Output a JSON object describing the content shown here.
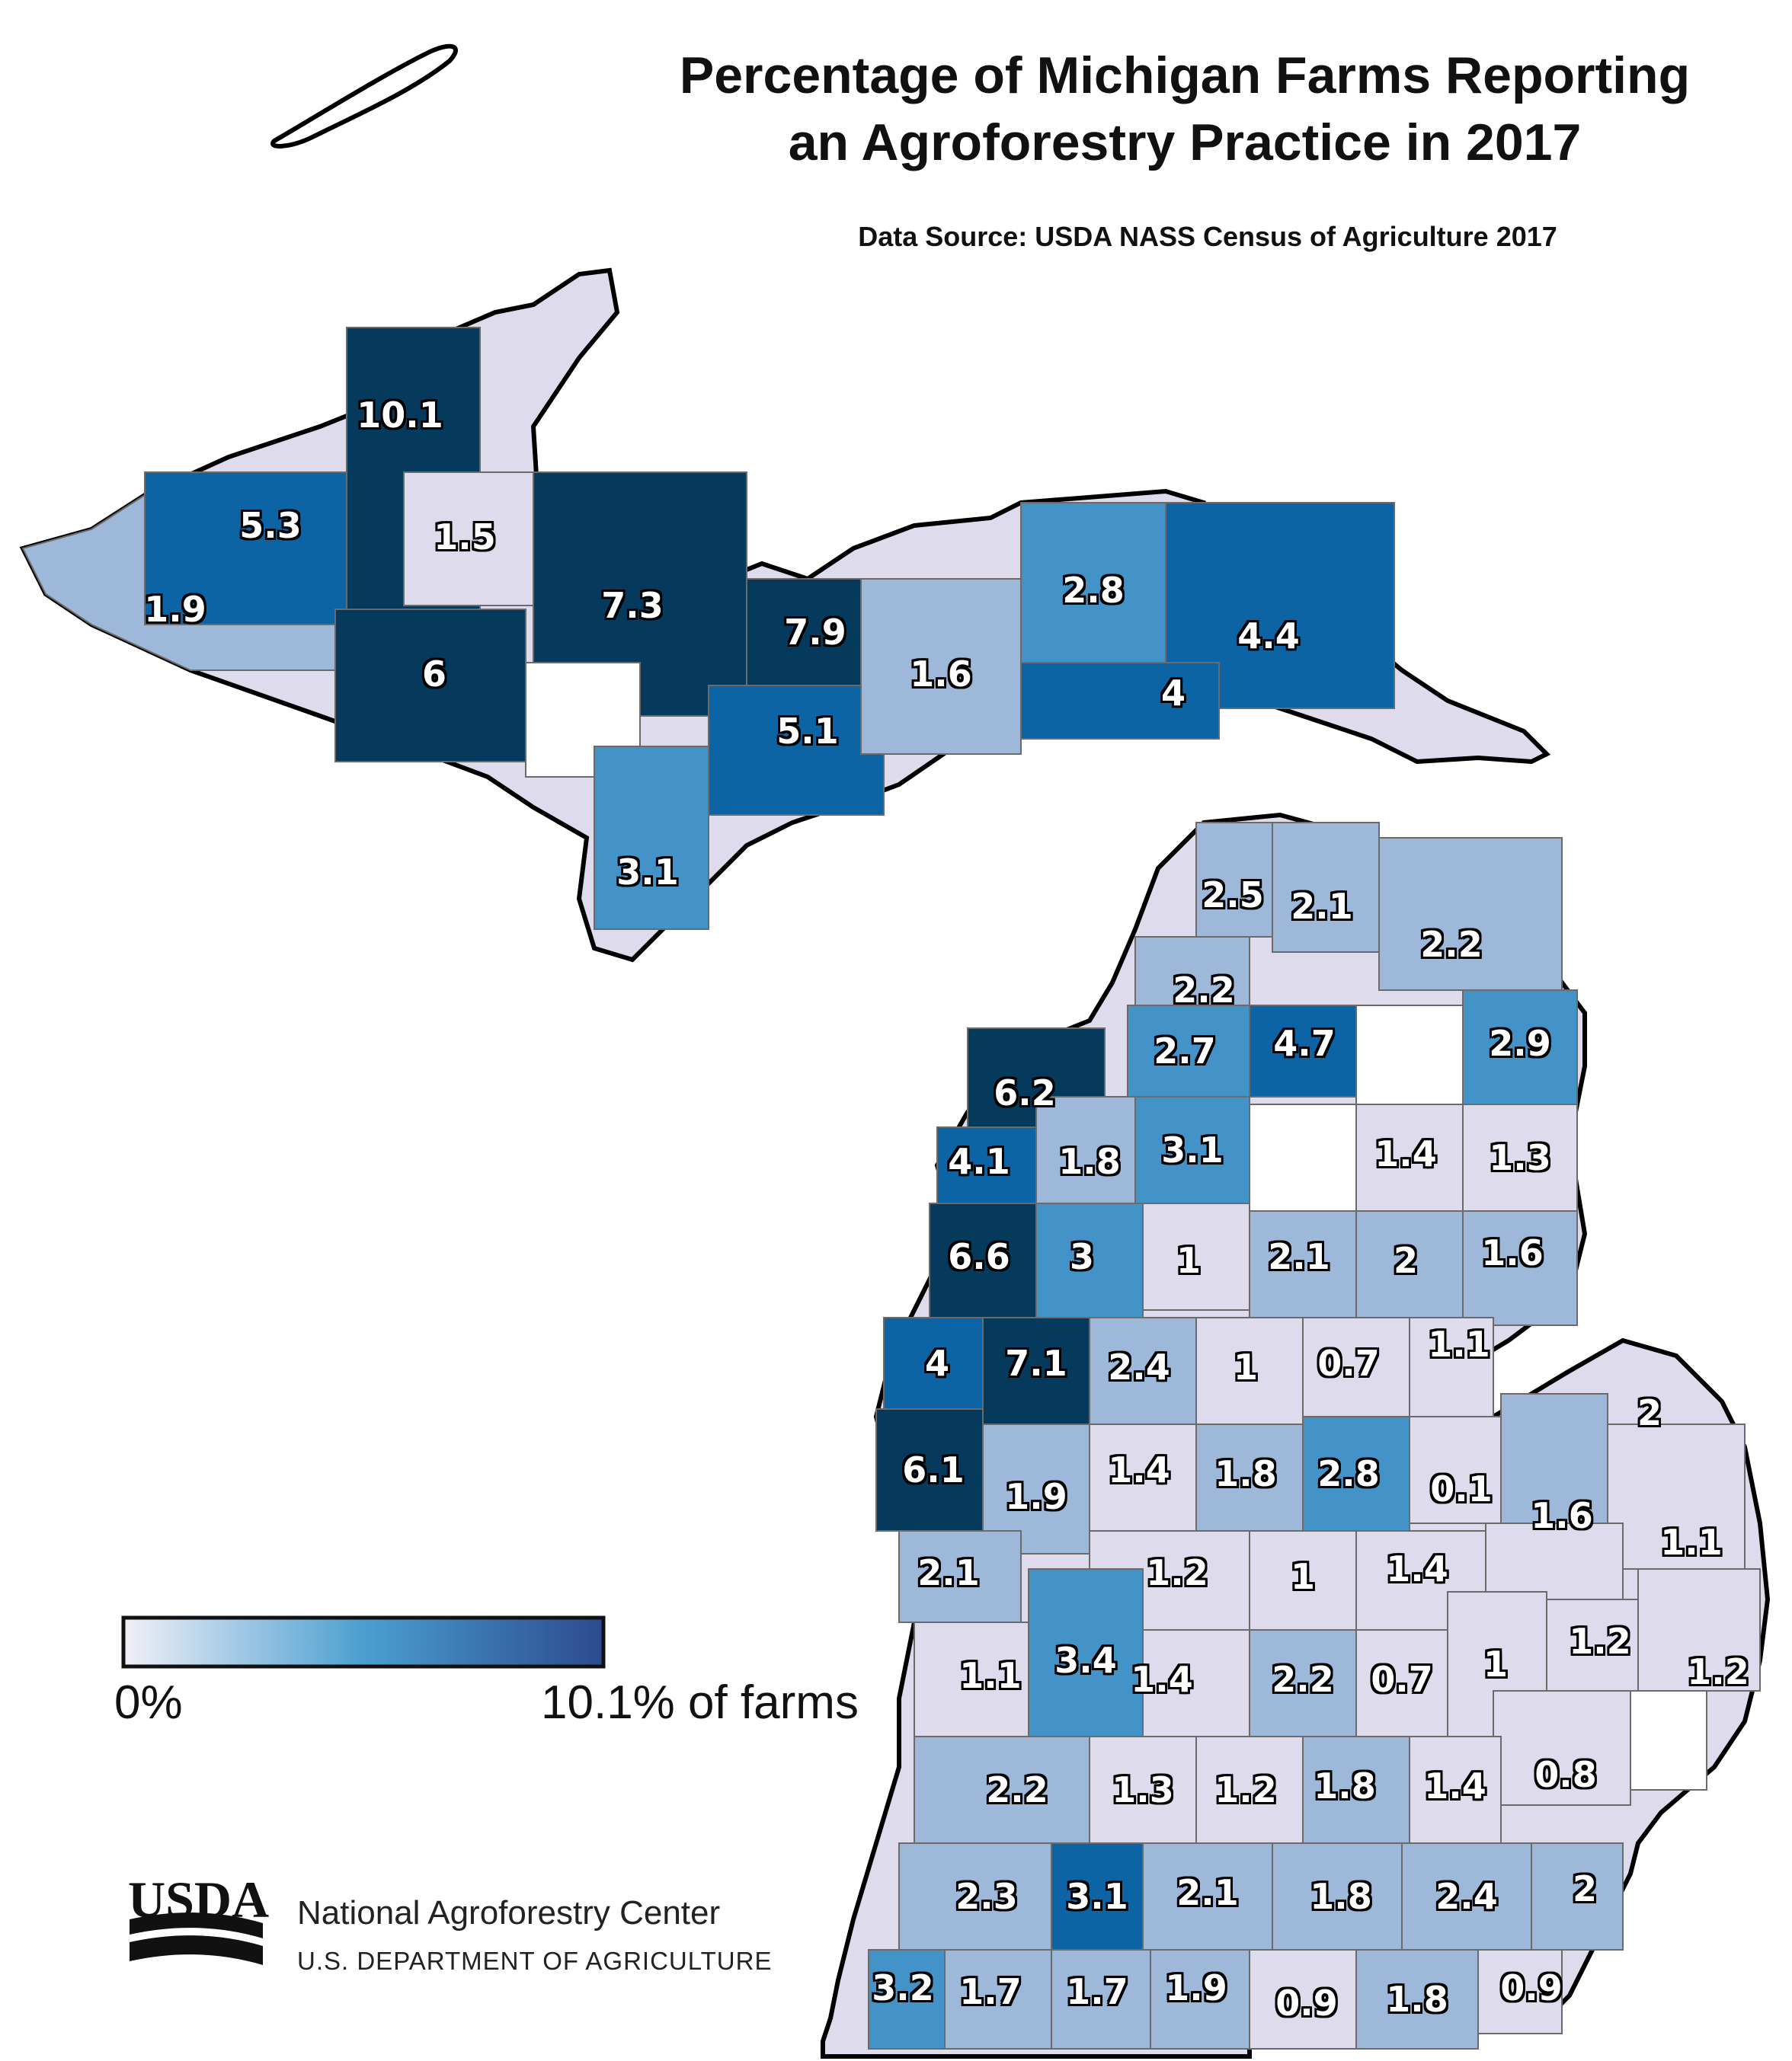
{
  "title": {
    "line1": "Percentage of Michigan Farms Reporting",
    "line2": "an Agroforestry Practice in 2017"
  },
  "subtitle": "Data Source: USDA NASS Census of Agriculture 2017",
  "legend": {
    "min_label": "0%",
    "max_label": "10.1% of farms",
    "color_low": "#f2f0f7",
    "color_high": "#2c4a8f"
  },
  "footer": {
    "logo_text": "USDA",
    "org_name": "National Agroforestry Center",
    "dept_name": "U.S. DEPARTMENT OF AGRICULTURE"
  },
  "colors": {
    "no_data": "#ffffff",
    "class_1": "#dedcec",
    "class_2": "#9db8d8",
    "class_3": "#4392c8",
    "class_4": "#0c64a4",
    "class_5": "#063a5c",
    "outline": "#000000",
    "county_border": "#6b6b6b"
  },
  "counties": [
    {
      "label": "10.1",
      "value": 10.1
    },
    {
      "label": "5.3",
      "value": 5.3
    },
    {
      "label": "1.5",
      "value": 1.5
    },
    {
      "label": "1.9",
      "value": 1.9
    },
    {
      "label": "6",
      "value": 6
    },
    {
      "label": "7.3",
      "value": 7.3
    },
    {
      "label": "7.9",
      "value": 7.9
    },
    {
      "label": "2.8",
      "value": 2.8
    },
    {
      "label": "4.4",
      "value": 4.4
    },
    {
      "label": "1.6",
      "value": 1.6
    },
    {
      "label": "4",
      "value": 4
    },
    {
      "label": "5.1",
      "value": 5.1
    },
    {
      "label": "3.1",
      "value": 3.1
    },
    {
      "label": "2.5",
      "value": 2.5
    },
    {
      "label": "2.1",
      "value": 2.1
    },
    {
      "label": "2.2",
      "value": 2.2
    },
    {
      "label": "2.2",
      "value": 2.2
    },
    {
      "label": "2.7",
      "value": 2.7
    },
    {
      "label": "4.7",
      "value": 4.7
    },
    {
      "label": "2.9",
      "value": 2.9
    },
    {
      "label": "6.2",
      "value": 6.2
    },
    {
      "label": "4.1",
      "value": 4.1
    },
    {
      "label": "1.8",
      "value": 1.8
    },
    {
      "label": "3.1",
      "value": 3.1
    },
    {
      "label": "1.4",
      "value": 1.4
    },
    {
      "label": "1.3",
      "value": 1.3
    },
    {
      "label": "6.6",
      "value": 6.6
    },
    {
      "label": "3",
      "value": 3
    },
    {
      "label": "1",
      "value": 1
    },
    {
      "label": "2.1",
      "value": 2.1
    },
    {
      "label": "2",
      "value": 2
    },
    {
      "label": "1.6",
      "value": 1.6
    },
    {
      "label": "4",
      "value": 4
    },
    {
      "label": "7.1",
      "value": 7.1
    },
    {
      "label": "2.4",
      "value": 2.4
    },
    {
      "label": "1",
      "value": 1
    },
    {
      "label": "0.7",
      "value": 0.7
    },
    {
      "label": "1.1",
      "value": 1.1
    },
    {
      "label": "2",
      "value": 2
    },
    {
      "label": "6.1",
      "value": 6.1
    },
    {
      "label": "1.9",
      "value": 1.9
    },
    {
      "label": "1.4",
      "value": 1.4
    },
    {
      "label": "1.8",
      "value": 1.8
    },
    {
      "label": "2.8",
      "value": 2.8
    },
    {
      "label": "0.1",
      "value": 0.1
    },
    {
      "label": "1.6",
      "value": 1.6
    },
    {
      "label": "1.1",
      "value": 1.1
    },
    {
      "label": "2.1",
      "value": 2.1
    },
    {
      "label": "1.2",
      "value": 1.2
    },
    {
      "label": "1",
      "value": 1
    },
    {
      "label": "1.4",
      "value": 1.4
    },
    {
      "label": "1.1",
      "value": 1.1
    },
    {
      "label": "3.4",
      "value": 3.4
    },
    {
      "label": "1.4",
      "value": 1.4
    },
    {
      "label": "2.2",
      "value": 2.2
    },
    {
      "label": "0.7",
      "value": 0.7
    },
    {
      "label": "1",
      "value": 1
    },
    {
      "label": "1.2",
      "value": 1.2
    },
    {
      "label": "1.2",
      "value": 1.2
    },
    {
      "label": "2.2",
      "value": 2.2
    },
    {
      "label": "1.3",
      "value": 1.3
    },
    {
      "label": "1.2",
      "value": 1.2
    },
    {
      "label": "1.8",
      "value": 1.8
    },
    {
      "label": "1.4",
      "value": 1.4
    },
    {
      "label": "0.8",
      "value": 0.8
    },
    {
      "label": "2.3",
      "value": 2.3
    },
    {
      "label": "3.1",
      "value": 3.1
    },
    {
      "label": "2.1",
      "value": 2.1
    },
    {
      "label": "1.8",
      "value": 1.8
    },
    {
      "label": "2.4",
      "value": 2.4
    },
    {
      "label": "2",
      "value": 2
    },
    {
      "label": "3.2",
      "value": 3.2
    },
    {
      "label": "1.7",
      "value": 1.7
    },
    {
      "label": "1.7",
      "value": 1.7
    },
    {
      "label": "1.9",
      "value": 1.9
    },
    {
      "label": "0.9",
      "value": 0.9
    },
    {
      "label": "1.8",
      "value": 1.8
    },
    {
      "label": "0.9",
      "value": 0.9
    }
  ]
}
